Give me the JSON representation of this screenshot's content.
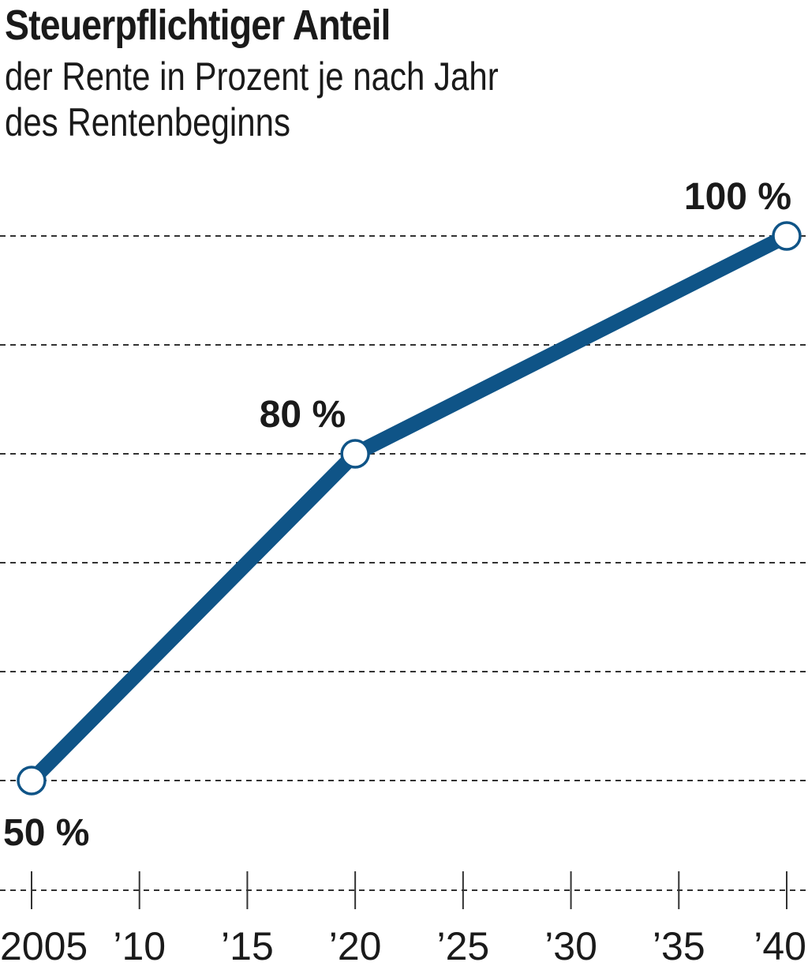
{
  "chart_data": {
    "type": "line",
    "title": "Steuerpflichtiger Anteil",
    "subtitle": [
      "der Rente in Prozent je nach Jahr",
      "des Rentenbeginns"
    ],
    "x": [
      2005,
      2020,
      2040
    ],
    "values": [
      50,
      80,
      100
    ],
    "data_labels": [
      "50 %",
      "80 %",
      "100 %"
    ],
    "x_ticks": [
      2005,
      2010,
      2015,
      2020,
      2025,
      2030,
      2035,
      2040
    ],
    "x_tick_labels": [
      "2005",
      "’10",
      "’15",
      "’20",
      "’25",
      "’30",
      "’35",
      "’40"
    ],
    "xlim": [
      2005,
      2040
    ],
    "ylim": [
      50,
      100
    ],
    "y_gridlines": [
      50,
      60,
      70,
      80,
      90,
      100
    ],
    "grid": "horizontal dashed",
    "xlabel": "",
    "ylabel": "",
    "colors": {
      "line": "#0f5487",
      "marker_fill": "#ffffff",
      "text": "#1a1a1a",
      "grid": "#333333"
    }
  }
}
